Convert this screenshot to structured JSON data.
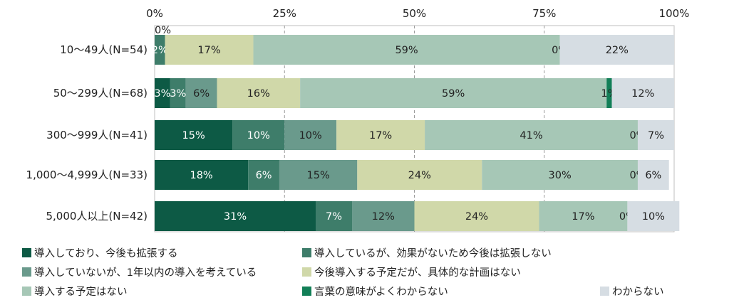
{
  "chart_data": {
    "type": "bar",
    "orientation": "horizontal",
    "stacked": true,
    "xlim": [
      0,
      100
    ],
    "x_ticks": [
      "0%",
      "25%",
      "50%",
      "75%",
      "100%"
    ],
    "grid": true,
    "legend_position": "bottom",
    "categories": [
      "10～49人(N=54)",
      "50～299人(N=68)",
      "300～999人(N=41)",
      "1,000～4,999人(N=33)",
      "5,000人以上(N=42)"
    ],
    "series": [
      {
        "name": "導入しており、今後も拡張する",
        "color": "#0d5a45",
        "label_color": "#ffffff",
        "values": [
          0,
          3,
          15,
          18,
          31
        ],
        "labels": [
          "0%",
          "3%",
          "15%",
          "18%",
          "31%"
        ]
      },
      {
        "name": "導入しているが、効果がないため今後は拡張しない",
        "color": "#3e7d6a",
        "label_color": "#ffffff",
        "values": [
          2,
          3,
          10,
          6,
          7
        ],
        "labels": [
          "2%",
          "3%",
          "10%",
          "6%",
          "7%"
        ]
      },
      {
        "name": "導入していないが、1年以内の導入を考えている",
        "color": "#6a9a8c",
        "label_color": "#222222",
        "values": [
          0,
          6,
          10,
          15,
          12
        ],
        "labels": [
          "",
          "6%",
          "10%",
          "15%",
          "12%"
        ]
      },
      {
        "name": "今後導入する予定だが、具体的な計画はない",
        "color": "#d0d8a9",
        "label_color": "#222222",
        "values": [
          17,
          16,
          17,
          24,
          24
        ],
        "labels": [
          "17%",
          "16%",
          "17%",
          "24%",
          "24%"
        ]
      },
      {
        "name": "導入する予定はない",
        "color": "#a6c7b6",
        "label_color": "#222222",
        "values": [
          59,
          59,
          41,
          30,
          17
        ],
        "labels": [
          "59%",
          "59%",
          "41%",
          "30%",
          "17%"
        ]
      },
      {
        "name": "言葉の意味がよくわからない",
        "color": "#127f57",
        "label_color": "#222222",
        "values": [
          0,
          1,
          0,
          0,
          0
        ],
        "labels": [
          "0%",
          "1%",
          "0%",
          "0%",
          "0%"
        ]
      },
      {
        "name": "わからない",
        "color": "#d6dde3",
        "label_color": "#222222",
        "values": [
          22,
          12,
          7,
          6,
          10
        ],
        "labels": [
          "22%",
          "12%",
          "7%",
          "6%",
          "10%"
        ]
      }
    ]
  }
}
